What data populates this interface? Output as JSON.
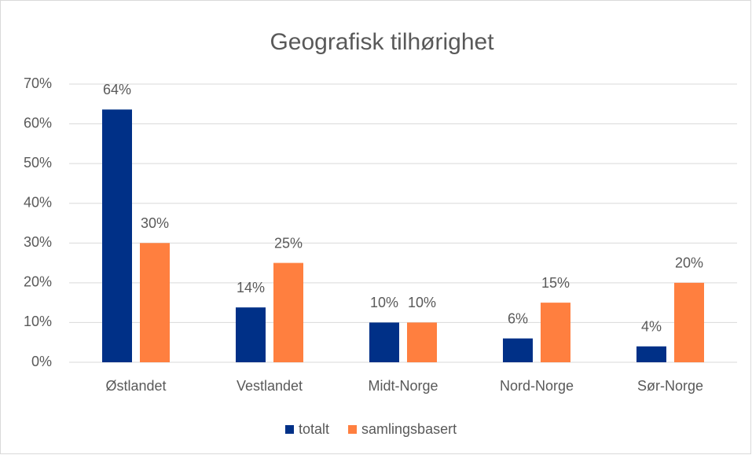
{
  "chart_data": {
    "type": "bar",
    "title": "Geografisk tilhørighet",
    "categories": [
      "Østlandet",
      "Vestlandet",
      "Midt-Norge",
      "Nord-Norge",
      "Sør-Norge"
    ],
    "series": [
      {
        "name": "totalt",
        "color": "#003087",
        "values": [
          63.6,
          13.8,
          10,
          6,
          4
        ],
        "value_labels": [
          "64%",
          "14%",
          "10%",
          "6%",
          "4%"
        ]
      },
      {
        "name": "samlingsbasert",
        "color": "#ff7f3f",
        "values": [
          30,
          25,
          10,
          15,
          20
        ],
        "value_labels": [
          "30%",
          "25%",
          "10%",
          "15%",
          "20%"
        ]
      }
    ],
    "ylim": [
      0,
      70
    ],
    "yticks": [
      {
        "value": 0,
        "label": "0%"
      },
      {
        "value": 10,
        "label": "10%"
      },
      {
        "value": 20,
        "label": "20%"
      },
      {
        "value": 30,
        "label": "30%"
      },
      {
        "value": 40,
        "label": "40%"
      },
      {
        "value": 50,
        "label": "50%"
      },
      {
        "value": 60,
        "label": "60%"
      },
      {
        "value": 70,
        "label": "70%"
      }
    ],
    "grid": true,
    "legend": "bottom"
  }
}
